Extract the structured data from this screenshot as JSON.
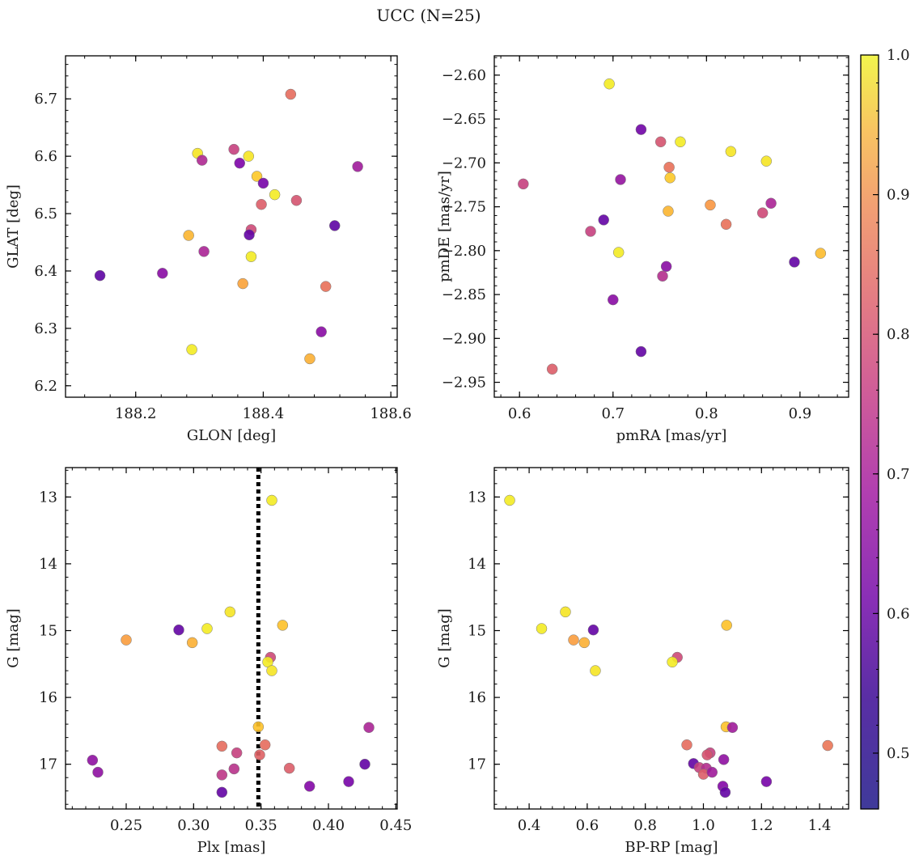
{
  "figure": {
    "title": "UCC (N=25)"
  },
  "colorbar": {
    "range": [
      0.46,
      1.0
    ],
    "ticks": [
      0.5,
      0.6,
      0.7,
      0.8,
      0.9,
      1.0
    ],
    "tick_labels": [
      "0.5",
      "0.6",
      "0.7",
      "0.8",
      "0.9",
      "1.0"
    ],
    "colormap": "plasma"
  },
  "chart_data": [
    {
      "type": "scatter",
      "xlabel": "GLON [deg]",
      "ylabel": "GLAT [deg]",
      "xlim": [
        188.09,
        188.61
      ],
      "ylim": [
        6.18,
        6.775
      ],
      "xticks": [
        188.2,
        188.4,
        188.6
      ],
      "xtick_labels": [
        "188.2",
        "188.4",
        "188.6"
      ],
      "yticks": [
        6.2,
        6.3,
        6.4,
        6.5,
        6.6,
        6.7
      ],
      "ytick_labels": [
        "6.2",
        "6.3",
        "6.4",
        "6.5",
        "6.6",
        "6.7"
      ],
      "points": [
        {
          "x": 188.443,
          "y": 6.708,
          "c": 0.77
        },
        {
          "x": 188.354,
          "y": 6.612,
          "c": 0.68
        },
        {
          "x": 188.297,
          "y": 6.605,
          "c": 0.97
        },
        {
          "x": 188.377,
          "y": 6.6,
          "c": 0.97
        },
        {
          "x": 188.304,
          "y": 6.593,
          "c": 0.63
        },
        {
          "x": 188.363,
          "y": 6.588,
          "c": 0.54
        },
        {
          "x": 188.548,
          "y": 6.582,
          "c": 0.6
        },
        {
          "x": 188.39,
          "y": 6.565,
          "c": 0.93
        },
        {
          "x": 188.4,
          "y": 6.553,
          "c": 0.53
        },
        {
          "x": 188.418,
          "y": 6.533,
          "c": 0.98
        },
        {
          "x": 188.452,
          "y": 6.523,
          "c": 0.72
        },
        {
          "x": 188.397,
          "y": 6.516,
          "c": 0.74
        },
        {
          "x": 188.512,
          "y": 6.479,
          "c": 0.49
        },
        {
          "x": 188.381,
          "y": 6.472,
          "c": 0.7
        },
        {
          "x": 188.378,
          "y": 6.463,
          "c": 0.5
        },
        {
          "x": 188.283,
          "y": 6.462,
          "c": 0.9
        },
        {
          "x": 188.307,
          "y": 6.434,
          "c": 0.62
        },
        {
          "x": 188.381,
          "y": 6.425,
          "c": 0.98
        },
        {
          "x": 188.144,
          "y": 6.392,
          "c": 0.49
        },
        {
          "x": 188.242,
          "y": 6.396,
          "c": 0.56
        },
        {
          "x": 188.368,
          "y": 6.378,
          "c": 0.87
        },
        {
          "x": 188.498,
          "y": 6.373,
          "c": 0.78
        },
        {
          "x": 188.491,
          "y": 6.294,
          "c": 0.56
        },
        {
          "x": 188.288,
          "y": 6.263,
          "c": 0.98
        },
        {
          "x": 188.473,
          "y": 6.247,
          "c": 0.89
        }
      ]
    },
    {
      "type": "scatter",
      "xlabel": "pmRA [mas/yr]",
      "ylabel": "pmDE [mas/yr]",
      "xlim": [
        0.573,
        0.952
      ],
      "ylim": [
        -2.967,
        -2.578
      ],
      "xticks": [
        0.6,
        0.7,
        0.8,
        0.9
      ],
      "xtick_labels": [
        "0.6",
        "0.7",
        "0.8",
        "0.9"
      ],
      "yticks": [
        -2.95,
        -2.9,
        -2.85,
        -2.8,
        -2.75,
        -2.7,
        -2.65,
        -2.6
      ],
      "ytick_labels": [
        "−2.95",
        "−2.90",
        "−2.85",
        "−2.80",
        "−2.75",
        "−2.70",
        "−2.65",
        "−2.60"
      ],
      "points": [
        {
          "x": 0.696,
          "y": -2.61,
          "c": 0.98
        },
        {
          "x": 0.73,
          "y": -2.662,
          "c": 0.52
        },
        {
          "x": 0.751,
          "y": -2.676,
          "c": 0.72
        },
        {
          "x": 0.772,
          "y": -2.676,
          "c": 0.98
        },
        {
          "x": 0.826,
          "y": -2.687,
          "c": 0.97
        },
        {
          "x": 0.864,
          "y": -2.698,
          "c": 0.97
        },
        {
          "x": 0.76,
          "y": -2.705,
          "c": 0.78
        },
        {
          "x": 0.761,
          "y": -2.717,
          "c": 0.93
        },
        {
          "x": 0.708,
          "y": -2.719,
          "c": 0.58
        },
        {
          "x": 0.604,
          "y": -2.724,
          "c": 0.68
        },
        {
          "x": 0.869,
          "y": -2.746,
          "c": 0.62
        },
        {
          "x": 0.804,
          "y": -2.748,
          "c": 0.85
        },
        {
          "x": 0.759,
          "y": -2.755,
          "c": 0.9
        },
        {
          "x": 0.86,
          "y": -2.757,
          "c": 0.7
        },
        {
          "x": 0.69,
          "y": -2.765,
          "c": 0.5
        },
        {
          "x": 0.821,
          "y": -2.77,
          "c": 0.78
        },
        {
          "x": 0.676,
          "y": -2.778,
          "c": 0.68
        },
        {
          "x": 0.706,
          "y": -2.802,
          "c": 0.98
        },
        {
          "x": 0.922,
          "y": -2.803,
          "c": 0.91
        },
        {
          "x": 0.894,
          "y": -2.813,
          "c": 0.5
        },
        {
          "x": 0.757,
          "y": -2.818,
          "c": 0.56
        },
        {
          "x": 0.753,
          "y": -2.829,
          "c": 0.64
        },
        {
          "x": 0.7,
          "y": -2.856,
          "c": 0.56
        },
        {
          "x": 0.73,
          "y": -2.915,
          "c": 0.5
        },
        {
          "x": 0.635,
          "y": -2.935,
          "c": 0.74
        }
      ]
    },
    {
      "type": "scatter",
      "xlabel": "Plx [mas]",
      "ylabel": "G [mag]",
      "xlim": [
        0.205,
        0.451
      ],
      "ylim": [
        17.67,
        12.56
      ],
      "xticks": [
        0.25,
        0.3,
        0.35,
        0.4,
        0.45
      ],
      "xtick_labels": [
        "0.25",
        "0.30",
        "0.35",
        "0.40",
        "0.45"
      ],
      "yticks": [
        13,
        14,
        15,
        16,
        17
      ],
      "ytick_labels": [
        "13",
        "14",
        "15",
        "16",
        "17"
      ],
      "vline": 0.348,
      "points": [
        {
          "x": 0.358,
          "y": 13.05,
          "c": 0.98
        },
        {
          "x": 0.327,
          "y": 14.72,
          "c": 0.97
        },
        {
          "x": 0.366,
          "y": 14.92,
          "c": 0.92
        },
        {
          "x": 0.289,
          "y": 14.99,
          "c": 0.5
        },
        {
          "x": 0.31,
          "y": 14.97,
          "c": 0.98
        },
        {
          "x": 0.25,
          "y": 15.14,
          "c": 0.86
        },
        {
          "x": 0.299,
          "y": 15.18,
          "c": 0.89
        },
        {
          "x": 0.357,
          "y": 15.4,
          "c": 0.7
        },
        {
          "x": 0.355,
          "y": 15.47,
          "c": 0.98
        },
        {
          "x": 0.358,
          "y": 15.6,
          "c": 0.97
        },
        {
          "x": 0.348,
          "y": 16.44,
          "c": 0.92
        },
        {
          "x": 0.43,
          "y": 16.45,
          "c": 0.62
        },
        {
          "x": 0.321,
          "y": 16.73,
          "c": 0.77
        },
        {
          "x": 0.353,
          "y": 16.71,
          "c": 0.77
        },
        {
          "x": 0.332,
          "y": 16.83,
          "c": 0.68
        },
        {
          "x": 0.349,
          "y": 16.86,
          "c": 0.75
        },
        {
          "x": 0.225,
          "y": 16.94,
          "c": 0.57
        },
        {
          "x": 0.427,
          "y": 17.0,
          "c": 0.5
        },
        {
          "x": 0.371,
          "y": 17.06,
          "c": 0.74
        },
        {
          "x": 0.33,
          "y": 17.07,
          "c": 0.65
        },
        {
          "x": 0.229,
          "y": 17.12,
          "c": 0.57
        },
        {
          "x": 0.321,
          "y": 17.16,
          "c": 0.66
        },
        {
          "x": 0.415,
          "y": 17.26,
          "c": 0.53
        },
        {
          "x": 0.386,
          "y": 17.33,
          "c": 0.55
        },
        {
          "x": 0.321,
          "y": 17.42,
          "c": 0.5
        }
      ]
    },
    {
      "type": "scatter",
      "xlabel": "BP-RP [mag]",
      "ylabel": "G [mag]",
      "xlim": [
        0.28,
        1.5
      ],
      "ylim": [
        17.67,
        12.56
      ],
      "xticks": [
        0.4,
        0.6,
        0.8,
        1.0,
        1.2,
        1.4
      ],
      "xtick_labels": [
        "0.4",
        "0.6",
        "0.8",
        "1.0",
        "1.2",
        "1.4"
      ],
      "yticks": [
        13,
        14,
        15,
        16,
        17
      ],
      "ytick_labels": [
        "13",
        "14",
        "15",
        "16",
        "17"
      ],
      "points": [
        {
          "x": 0.333,
          "y": 13.05,
          "c": 0.98
        },
        {
          "x": 0.525,
          "y": 14.72,
          "c": 0.97
        },
        {
          "x": 1.08,
          "y": 14.92,
          "c": 0.92
        },
        {
          "x": 0.443,
          "y": 14.97,
          "c": 0.98
        },
        {
          "x": 0.621,
          "y": 14.99,
          "c": 0.5
        },
        {
          "x": 0.553,
          "y": 15.14,
          "c": 0.86
        },
        {
          "x": 0.59,
          "y": 15.18,
          "c": 0.89
        },
        {
          "x": 0.91,
          "y": 15.4,
          "c": 0.7
        },
        {
          "x": 0.893,
          "y": 15.47,
          "c": 0.98
        },
        {
          "x": 0.628,
          "y": 15.6,
          "c": 0.97
        },
        {
          "x": 1.078,
          "y": 16.44,
          "c": 0.92
        },
        {
          "x": 1.1,
          "y": 16.45,
          "c": 0.6
        },
        {
          "x": 0.943,
          "y": 16.71,
          "c": 0.77
        },
        {
          "x": 1.428,
          "y": 16.72,
          "c": 0.79
        },
        {
          "x": 1.023,
          "y": 16.83,
          "c": 0.68
        },
        {
          "x": 1.013,
          "y": 16.86,
          "c": 0.72
        },
        {
          "x": 1.07,
          "y": 16.93,
          "c": 0.57
        },
        {
          "x": 0.966,
          "y": 16.99,
          "c": 0.5
        },
        {
          "x": 0.986,
          "y": 17.05,
          "c": 0.68
        },
        {
          "x": 1.01,
          "y": 17.06,
          "c": 0.64
        },
        {
          "x": 1.0,
          "y": 17.15,
          "c": 0.74
        },
        {
          "x": 1.03,
          "y": 17.12,
          "c": 0.6
        },
        {
          "x": 1.217,
          "y": 17.26,
          "c": 0.53
        },
        {
          "x": 1.067,
          "y": 17.33,
          "c": 0.55
        },
        {
          "x": 1.075,
          "y": 17.42,
          "c": 0.5
        }
      ]
    }
  ]
}
